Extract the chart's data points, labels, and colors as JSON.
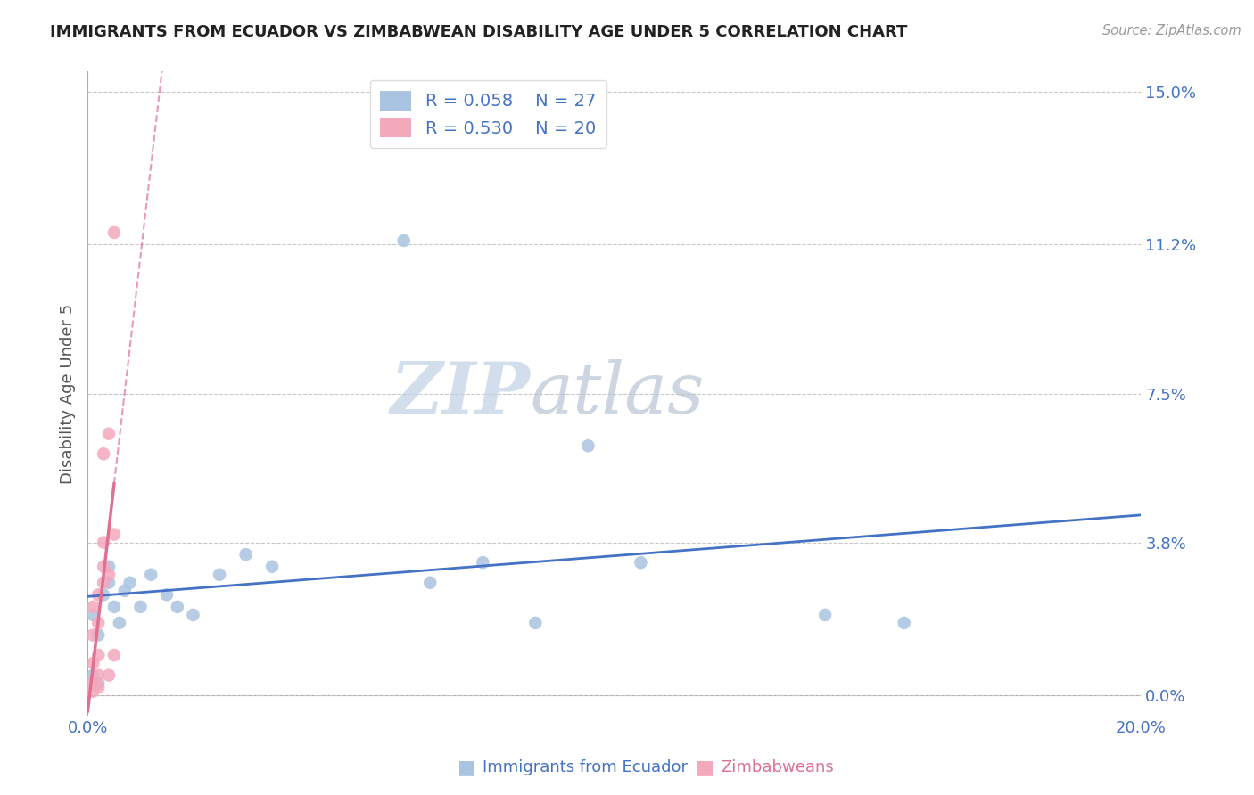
{
  "title": "IMMIGRANTS FROM ECUADOR VS ZIMBABWEAN DISABILITY AGE UNDER 5 CORRELATION CHART",
  "source": "Source: ZipAtlas.com",
  "ylabel": "Disability Age Under 5",
  "xlim": [
    0.0,
    0.2
  ],
  "ylim": [
    -0.005,
    0.155
  ],
  "yticks": [
    0.0,
    0.038,
    0.075,
    0.112,
    0.15
  ],
  "ytick_labels": [
    "0.0%",
    "3.8%",
    "7.5%",
    "11.2%",
    "15.0%"
  ],
  "xticks": [
    0.0,
    0.05,
    0.1,
    0.15,
    0.2
  ],
  "xtick_labels": [
    "0.0%",
    "",
    "",
    "",
    "20.0%"
  ],
  "ecuador_R": 0.058,
  "ecuador_N": 27,
  "zimbabwe_R": 0.53,
  "zimbabwe_N": 20,
  "ecuador_color": "#a8c4e0",
  "zimbabwe_color": "#f4a8bc",
  "ecuador_line_color": "#4472c4",
  "zimbabwe_line_color": "#e07090",
  "watermark_zip_color": "#c5d8ec",
  "watermark_atlas_color": "#c0c8d8",
  "ecuador_x": [
    0.001,
    0.001,
    0.002,
    0.002,
    0.003,
    0.004,
    0.004,
    0.005,
    0.006,
    0.007,
    0.008,
    0.01,
    0.012,
    0.015,
    0.017,
    0.02,
    0.025,
    0.03,
    0.035,
    0.06,
    0.065,
    0.075,
    0.085,
    0.095,
    0.105,
    0.14,
    0.155
  ],
  "ecuador_y": [
    0.005,
    0.02,
    0.003,
    0.015,
    0.025,
    0.028,
    0.032,
    0.022,
    0.018,
    0.026,
    0.028,
    0.022,
    0.03,
    0.025,
    0.022,
    0.02,
    0.03,
    0.035,
    0.032,
    0.113,
    0.028,
    0.033,
    0.018,
    0.062,
    0.033,
    0.02,
    0.018
  ],
  "zimbabwe_x": [
    0.001,
    0.001,
    0.001,
    0.001,
    0.001,
    0.002,
    0.002,
    0.002,
    0.002,
    0.002,
    0.003,
    0.003,
    0.003,
    0.003,
    0.004,
    0.004,
    0.004,
    0.005,
    0.005,
    0.005
  ],
  "zimbabwe_y": [
    0.001,
    0.003,
    0.008,
    0.015,
    0.022,
    0.002,
    0.005,
    0.01,
    0.018,
    0.025,
    0.028,
    0.032,
    0.038,
    0.06,
    0.005,
    0.03,
    0.065,
    0.01,
    0.04,
    0.115
  ],
  "legend_ecuador_label": "R = 0.058    N = 27",
  "legend_zimbabwe_label": "R = 0.530    N = 20",
  "bottom_label_ecuador": "Immigrants from Ecuador",
  "bottom_label_zimbabwe": "Zimbabweans"
}
